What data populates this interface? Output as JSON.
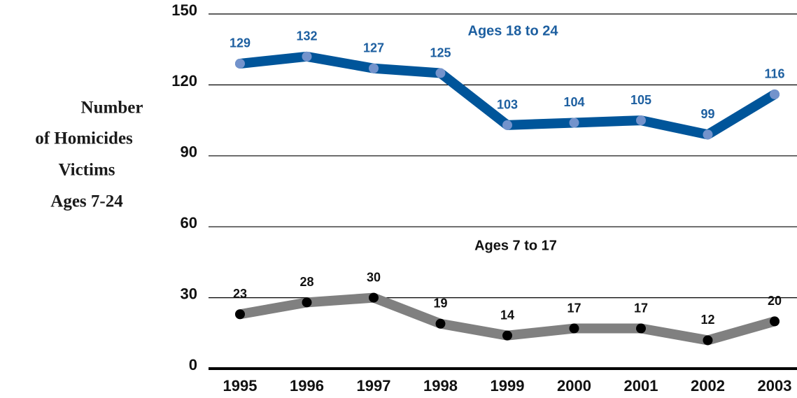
{
  "chart_data": {
    "type": "line",
    "ylabel": [
      "Number",
      "of Homicides",
      "Victims",
      "Ages 7-24"
    ],
    "categories": [
      "1995",
      "1996",
      "1997",
      "1998",
      "1999",
      "2000",
      "2001",
      "2002",
      "2003"
    ],
    "series": [
      {
        "name": "Ages 18 to 24",
        "color": "#00559a",
        "marker_color": "#7393cc",
        "label_color": "#1d5fa0",
        "values": [
          129,
          132,
          127,
          125,
          103,
          104,
          105,
          99,
          116
        ]
      },
      {
        "name": "Ages 7 to 17",
        "color": "#808080",
        "marker_color": "#000000",
        "label_color": "#111111",
        "values": [
          23,
          28,
          30,
          19,
          14,
          17,
          17,
          12,
          20
        ]
      }
    ],
    "ylim": [
      0,
      150
    ],
    "yticks": [
      0,
      30,
      60,
      90,
      120,
      150
    ],
    "grid": true
  }
}
